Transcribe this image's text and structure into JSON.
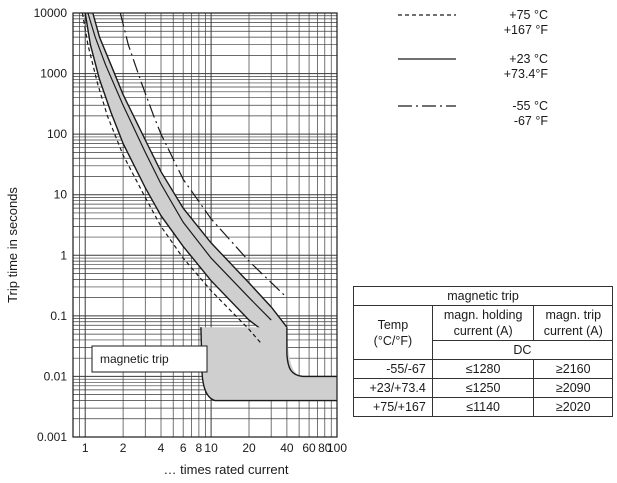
{
  "chart_data": {
    "type": "line",
    "title": "",
    "xlabel": "… times rated current",
    "ylabel": "Trip time in seconds",
    "x_scale": "log",
    "y_scale": "log",
    "xlim": [
      0.8,
      100
    ],
    "ylim": [
      0.001,
      10000
    ],
    "x_ticks": [
      {
        "value": 1,
        "label": "1"
      },
      {
        "value": 2,
        "label": "2"
      },
      {
        "value": 4,
        "label": "4"
      },
      {
        "value": 6,
        "label": "6"
      },
      {
        "value": 8,
        "label": "8"
      },
      {
        "value": 10,
        "label": "10"
      },
      {
        "value": 20,
        "label": "20"
      },
      {
        "value": 40,
        "label": "40"
      },
      {
        "value": 60,
        "label": "60"
      },
      {
        "value": 80,
        "label": "80"
      },
      {
        "value": 100,
        "label": "100"
      }
    ],
    "y_ticks": [
      {
        "value": 10000,
        "label": "10000"
      },
      {
        "value": 1000,
        "label": "1000"
      },
      {
        "value": 100,
        "label": "100"
      },
      {
        "value": 10,
        "label": "10"
      },
      {
        "value": 1,
        "label": "1"
      },
      {
        "value": 0.1,
        "label": "0.1"
      },
      {
        "value": 0.01,
        "label": "0.01"
      },
      {
        "value": 0.001,
        "label": "0.001"
      }
    ],
    "grid": true,
    "legend_position": "top-right",
    "band": {
      "upper": [
        [
          1.15,
          10000
        ],
        [
          1.3,
          4000
        ],
        [
          1.6,
          1400
        ],
        [
          2,
          450
        ],
        [
          3,
          80
        ],
        [
          4,
          24
        ],
        [
          6,
          6
        ],
        [
          10,
          1.6
        ],
        [
          20,
          0.35
        ],
        [
          30,
          0.14
        ],
        [
          40,
          0.065
        ]
      ],
      "lower": [
        [
          1.0,
          10000
        ],
        [
          1.1,
          3000
        ],
        [
          1.3,
          800
        ],
        [
          1.6,
          230
        ],
        [
          2,
          70
        ],
        [
          3,
          13
        ],
        [
          4,
          4.5
        ],
        [
          6,
          1.4
        ],
        [
          10,
          0.38
        ],
        [
          20,
          0.085
        ],
        [
          25,
          0.06
        ]
      ]
    },
    "magnetic_region": {
      "x_left": 8.3,
      "x_right": 40,
      "top": 0.065,
      "right_floor": 0.01,
      "left_floor": 0.004,
      "x_end": 100
    },
    "series": [
      {
        "name": "+75 °C +167 °F",
        "style": "dashed",
        "points": [
          [
            0.95,
            10000
          ],
          [
            1.05,
            3000
          ],
          [
            1.25,
            700
          ],
          [
            1.5,
            200
          ],
          [
            2,
            45
          ],
          [
            3,
            9
          ],
          [
            4,
            3
          ],
          [
            6,
            0.9
          ],
          [
            10,
            0.26
          ],
          [
            20,
            0.06
          ],
          [
            25,
            0.035
          ]
        ]
      },
      {
        "name": "+23 °C +73.4°F",
        "style": "solid",
        "points": [
          [
            1.05,
            10000
          ],
          [
            1.2,
            4000
          ],
          [
            1.45,
            1400
          ],
          [
            2,
            300
          ],
          [
            3,
            50
          ],
          [
            4,
            15
          ],
          [
            6,
            3.5
          ],
          [
            10,
            0.9
          ],
          [
            20,
            0.2
          ],
          [
            30,
            0.085
          ]
        ]
      },
      {
        "name": "-55 °C -67 °F",
        "style": "dashdot",
        "points": [
          [
            1.9,
            10000
          ],
          [
            2.2,
            3000
          ],
          [
            2.8,
            700
          ],
          [
            3.5,
            200
          ],
          [
            4,
            100
          ],
          [
            6,
            18
          ],
          [
            10,
            4
          ],
          [
            20,
            0.8
          ],
          [
            40,
            0.2
          ]
        ]
      }
    ],
    "annotations": [
      "magnetic trip"
    ]
  },
  "legend": [
    {
      "style": "dashed",
      "line1": "+75 °C",
      "line2": "+167 °F"
    },
    {
      "style": "solid",
      "line1": "+23 °C",
      "line2": "+73.4°F"
    },
    {
      "style": "dashdot",
      "line1": "-55 °C",
      "line2": "-67 °F"
    }
  ],
  "region_label": "magnetic trip",
  "table": {
    "title": "magnetic trip",
    "col_temp": "Temp",
    "col_temp_unit": "(°C/°F)",
    "col_holding": "magn. holding",
    "col_holding_unit": "current (A)",
    "col_trip": "magn. trip",
    "col_trip_unit": "current (A)",
    "subheader": "DC",
    "rows": [
      {
        "temp": "-55/-67",
        "holding": "≤1280",
        "trip": "≥2160"
      },
      {
        "temp": "+23/+73.4",
        "holding": "≤1250",
        "trip": "≥2090"
      },
      {
        "temp": "+75/+167",
        "holding": "≤1140",
        "trip": "≥2020"
      }
    ]
  },
  "colors": {
    "band_fill": "#cfcfcf",
    "line": "#1a1a1a",
    "grid": "#3a3a3a"
  }
}
